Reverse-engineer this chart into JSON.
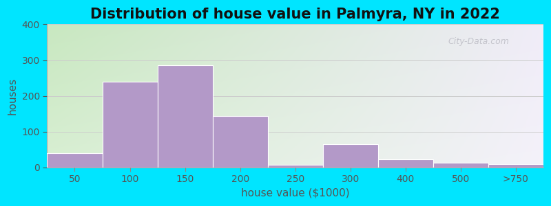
{
  "title": "Distribution of house value in Palmyra, NY in 2022",
  "xlabel": "house value ($1000)",
  "ylabel": "houses",
  "bar_color": "#b399c8",
  "background_outer": "#00e5ff",
  "ylim": [
    0,
    400
  ],
  "yticks": [
    0,
    100,
    200,
    300,
    400
  ],
  "bar_labels": [
    "50",
    "100",
    "150",
    "200",
    "250",
    "300",
    "400",
    "500",
    ">750"
  ],
  "bar_heights": [
    40,
    240,
    285,
    143,
    8,
    65,
    22,
    14,
    9
  ],
  "bar_positions": [
    0.5,
    1.5,
    2.5,
    3.5,
    4.5,
    5.5,
    6.5,
    7.5,
    8.5
  ],
  "bar_width": 1.0,
  "title_fontsize": 15,
  "axis_fontsize": 11,
  "tick_fontsize": 10,
  "gradient_left": "#c8e8c0",
  "gradient_right": "#f0ecf8",
  "gradient_top": "#e0f0d8",
  "watermark_text": "City-Data.com",
  "watermark_color": "#c0c0c8"
}
